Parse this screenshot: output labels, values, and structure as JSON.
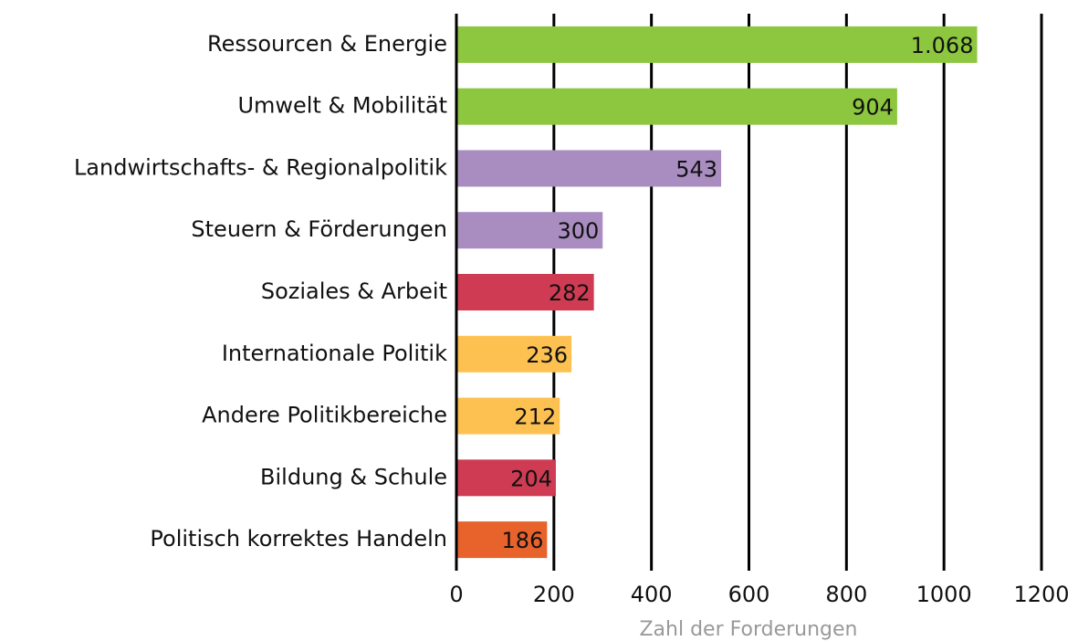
{
  "chart_data": {
    "type": "hbar",
    "categories": [
      "Ressourcen & Energie",
      "Umwelt & Mobilität",
      "Landwirtschafts- & Regionalpolitik",
      "Steuern & Förderungen",
      "Soziales & Arbeit",
      "Internationale Politik",
      "Andere Politikbereiche",
      "Bildung & Schule",
      "Politisch korrektes Handeln"
    ],
    "values": [
      1068,
      904,
      543,
      300,
      282,
      236,
      212,
      204,
      186
    ],
    "value_labels": [
      "1.068",
      "904",
      "543",
      "300",
      "282",
      "236",
      "212",
      "204",
      "186"
    ],
    "colors": [
      "#8dc63f",
      "#8dc63f",
      "#a98dc1",
      "#a98dc1",
      "#cf3b52",
      "#fdc151",
      "#fdc151",
      "#cf3b52",
      "#e8622c"
    ],
    "xlabel": "Zahl der Forderungen",
    "xlim": [
      0,
      1200
    ],
    "xticks": [
      0,
      200,
      400,
      600,
      800,
      1000,
      1200
    ],
    "grid": true
  }
}
